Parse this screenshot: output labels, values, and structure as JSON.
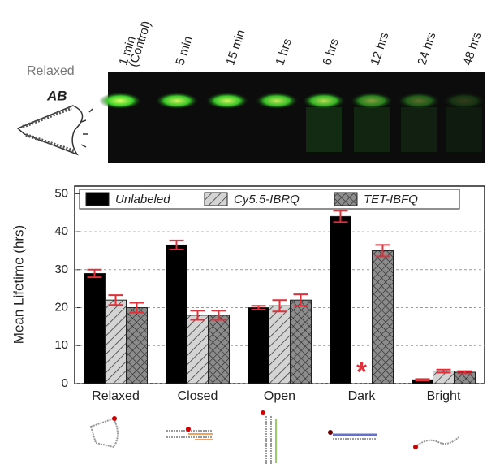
{
  "gel": {
    "label": "Relaxed",
    "construct": "AB",
    "lanes": [
      "1 min",
      "5 min",
      "15 min",
      "1 hrs",
      "6 hrs",
      "12 hrs",
      "24 hrs",
      "48 hrs"
    ],
    "control_note": "(Control)"
  },
  "chart_data": {
    "type": "bar",
    "ylabel": "Mean Lifetime (hrs)",
    "categories": [
      "Relaxed",
      "Closed",
      "Open",
      "Dark",
      "Bright"
    ],
    "series": [
      {
        "name": "Unlabeled",
        "color": "#000000",
        "pattern": "solid",
        "values": [
          29,
          36.5,
          20,
          44,
          1
        ],
        "errors": [
          1,
          1.2,
          0.5,
          1.5,
          0.2
        ]
      },
      {
        "name": "Cy5.5-IBRQ",
        "color": "#d4d4d4",
        "pattern": "diagonal",
        "values": [
          22,
          18,
          20.5,
          null,
          3.3
        ],
        "errors": [
          1.3,
          1.2,
          1.5,
          null,
          0.4
        ]
      },
      {
        "name": "TET-IBFQ",
        "color": "#8c8c8c",
        "pattern": "crosshatch",
        "values": [
          20,
          18,
          22,
          35,
          3
        ],
        "errors": [
          1.3,
          1.2,
          1.5,
          1.5,
          0.3
        ]
      }
    ],
    "error_color": "#e0303a",
    "null_marker": "*",
    "ylim": [
      0,
      52
    ],
    "yticks": [
      0,
      10,
      20,
      30,
      40,
      50
    ],
    "grid": true
  }
}
